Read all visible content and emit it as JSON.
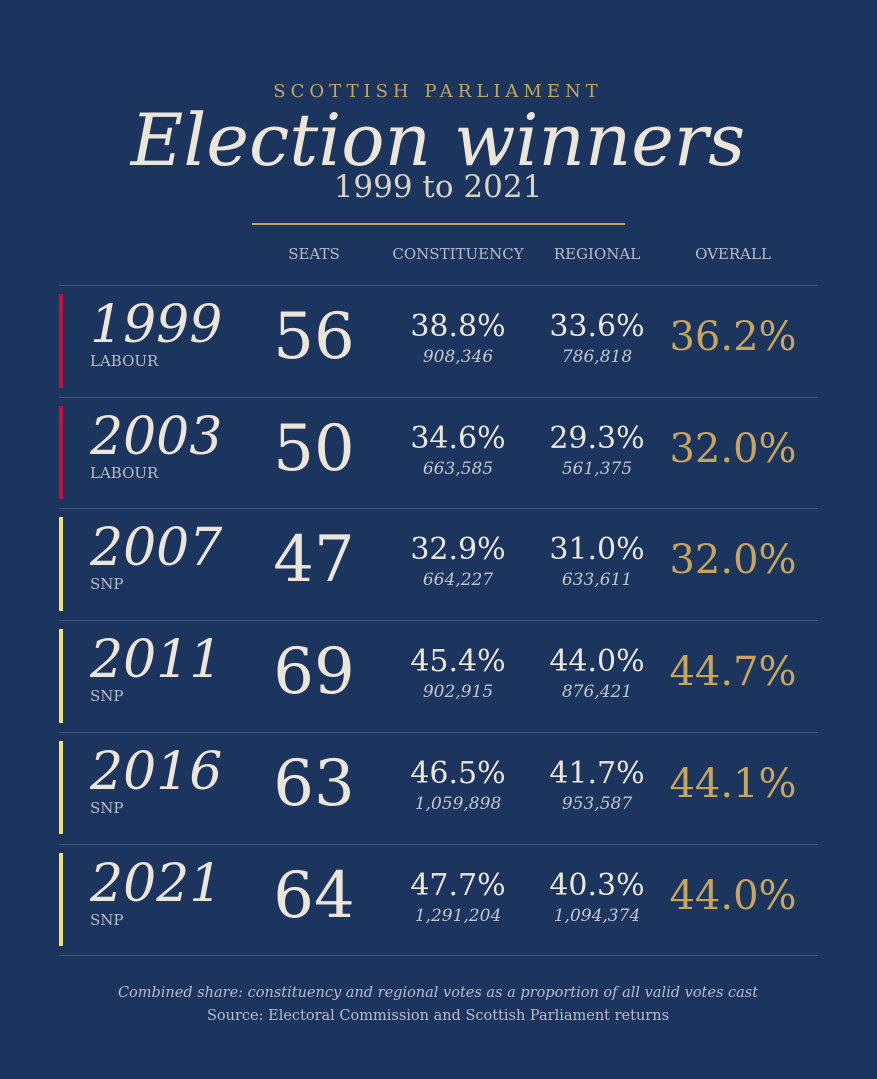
{
  "header": {
    "kicker": "SCOTTISH PARLIAMENT",
    "title": "Election winners",
    "subtitle": "1999 to 2021"
  },
  "table": {
    "columns": [
      "SEATS",
      "CONSTITUENCY",
      "REGIONAL",
      "OVERALL"
    ],
    "rows": [
      {
        "year": "1999",
        "party": "LABOUR",
        "color": "#c8103a",
        "seats": "56",
        "constituency": "38.8%",
        "constituency_votes": "908,346",
        "regional": "33.6%",
        "regional_votes": "786,818",
        "overall": "36.2%"
      },
      {
        "year": "2003",
        "party": "LABOUR",
        "color": "#c8103a",
        "seats": "50",
        "constituency": "34.6%",
        "constituency_votes": "663,585",
        "regional": "29.3%",
        "regional_votes": "561,375",
        "overall": "32.0%"
      },
      {
        "year": "2007",
        "party": "SNP",
        "color": "#f3df6c",
        "seats": "47",
        "constituency": "32.9%",
        "constituency_votes": "664,227",
        "regional": "31.0%",
        "regional_votes": "633,611",
        "overall": "32.0%"
      },
      {
        "year": "2011",
        "party": "SNP",
        "color": "#f3df6c",
        "seats": "69",
        "constituency": "45.4%",
        "constituency_votes": "902,915",
        "regional": "44.0%",
        "regional_votes": "876,421",
        "overall": "44.7%"
      },
      {
        "year": "2016",
        "party": "SNP",
        "color": "#f3df6c",
        "seats": "63",
        "constituency": "46.5%",
        "constituency_votes": "1,059,898",
        "regional": "41.7%",
        "regional_votes": "953,587",
        "overall": "44.1%"
      },
      {
        "year": "2021",
        "party": "SNP",
        "color": "#f3df6c",
        "seats": "64",
        "constituency": "47.7%",
        "constituency_votes": "1,291,204",
        "regional": "40.3%",
        "regional_votes": "1,094,374",
        "overall": "44.0%"
      }
    ]
  },
  "footer": {
    "note": "Combined share: constituency and regional votes as a proportion of all valid votes cast",
    "source": "Source: Electoral Commission and Scottish Parliament returns"
  }
}
